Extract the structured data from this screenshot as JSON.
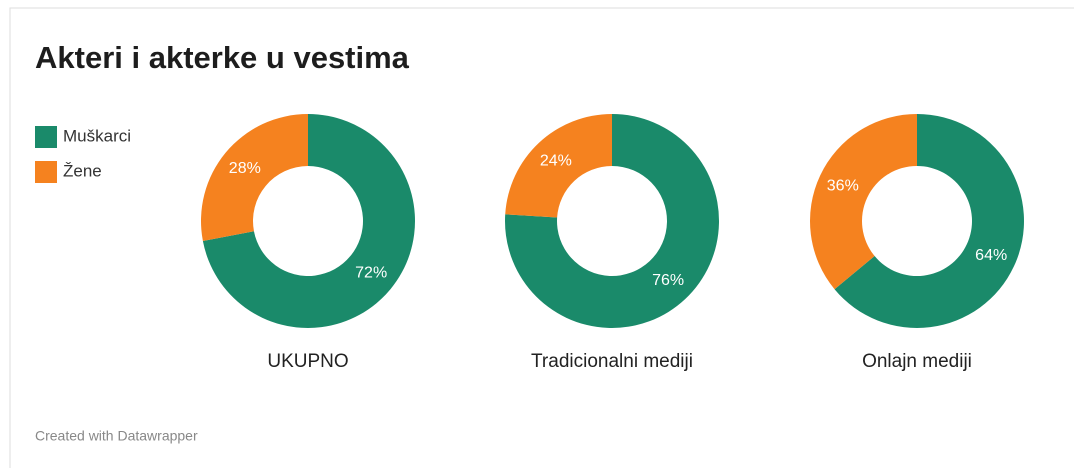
{
  "title": "Akteri i akterke u vestima",
  "credit": "Created with Datawrapper",
  "chart_data": [
    {
      "type": "pie",
      "title": "UKUPNO",
      "categories": [
        "Muškarci",
        "Žene"
      ],
      "values": [
        72,
        28
      ],
      "value_labels": [
        "72%",
        "28%"
      ],
      "colors": [
        "#1a8a6a",
        "#f5821f"
      ]
    },
    {
      "type": "pie",
      "title": "Tradicionalni mediji",
      "categories": [
        "Muškarci",
        "Žene"
      ],
      "values": [
        76,
        24
      ],
      "value_labels": [
        "76%",
        "24%"
      ],
      "colors": [
        "#1a8a6a",
        "#f5821f"
      ]
    },
    {
      "type": "pie",
      "title": "Onlajn mediji",
      "categories": [
        "Muškarci",
        "Žene"
      ],
      "values": [
        64,
        36
      ],
      "value_labels": [
        "64%",
        "36%"
      ],
      "colors": [
        "#1a8a6a",
        "#f5821f"
      ]
    }
  ]
}
